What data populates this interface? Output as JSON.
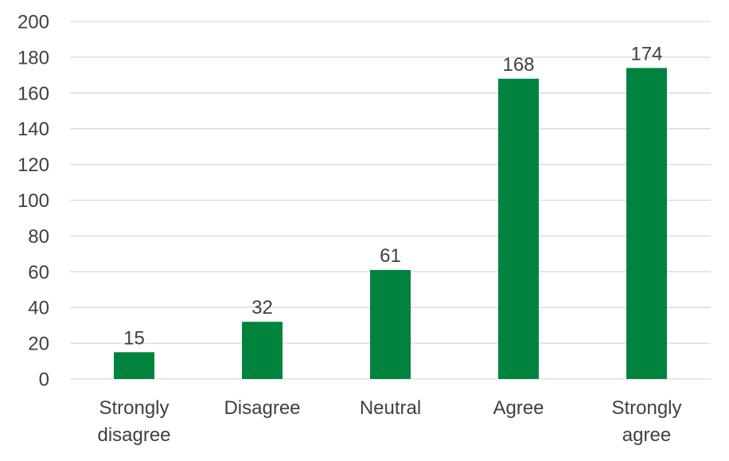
{
  "chart_data": {
    "type": "bar",
    "categories": [
      "Strongly disagree",
      "Disagree",
      "Neutral",
      "Agree",
      "Strongly agree"
    ],
    "category_lines": [
      [
        "Strongly",
        "disagree"
      ],
      [
        "Disagree"
      ],
      [
        "Neutral"
      ],
      [
        "Agree"
      ],
      [
        "Strongly",
        "agree"
      ]
    ],
    "values": [
      15,
      32,
      61,
      168,
      174
    ],
    "data_labels": [
      "15",
      "32",
      "61",
      "168",
      "174"
    ],
    "title": "",
    "xlabel": "",
    "ylabel": "",
    "ylim": [
      0,
      200
    ],
    "yticks": [
      0,
      20,
      40,
      60,
      80,
      100,
      120,
      140,
      160,
      180,
      200
    ],
    "grid": true,
    "legend": "none",
    "colors": {
      "bar": "#00843D",
      "grid": "#D9D9D9",
      "text": "#404040"
    }
  }
}
